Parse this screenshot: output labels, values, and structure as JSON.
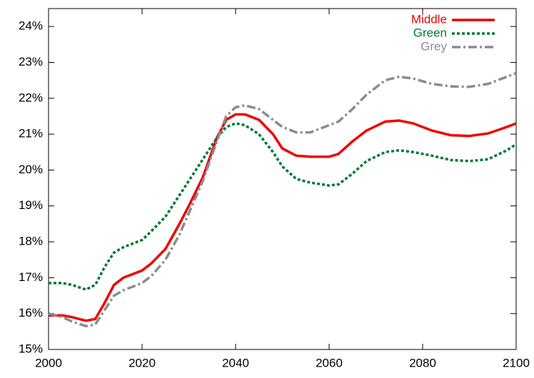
{
  "chart_data": {
    "type": "line",
    "x": [
      2000,
      2003,
      2005,
      2008,
      2010,
      2012,
      2014,
      2016,
      2018,
      2020,
      2022,
      2025,
      2028,
      2030,
      2033,
      2036,
      2038,
      2040,
      2042,
      2045,
      2048,
      2050,
      2053,
      2056,
      2060,
      2062,
      2065,
      2068,
      2072,
      2075,
      2078,
      2082,
      2086,
      2090,
      2094,
      2098,
      2100
    ],
    "series": [
      {
        "name": "Middle",
        "color": "#ee0000",
        "style": "solid",
        "values": [
          15.95,
          15.95,
          15.9,
          15.8,
          15.85,
          16.3,
          16.8,
          17.0,
          17.1,
          17.2,
          17.4,
          17.8,
          18.5,
          19.0,
          19.8,
          20.9,
          21.4,
          21.55,
          21.55,
          21.4,
          21.0,
          20.6,
          20.4,
          20.37,
          20.37,
          20.45,
          20.8,
          21.1,
          21.35,
          21.38,
          21.3,
          21.1,
          20.97,
          20.95,
          21.02,
          21.2,
          21.3
        ]
      },
      {
        "name": "Green",
        "color": "#007a33",
        "style": "dotted",
        "values": [
          16.85,
          16.85,
          16.8,
          16.67,
          16.8,
          17.3,
          17.7,
          17.85,
          17.95,
          18.05,
          18.3,
          18.7,
          19.3,
          19.7,
          20.3,
          20.9,
          21.2,
          21.3,
          21.25,
          21.0,
          20.5,
          20.1,
          19.75,
          19.65,
          19.57,
          19.6,
          19.9,
          20.25,
          20.5,
          20.55,
          20.5,
          20.4,
          20.28,
          20.25,
          20.3,
          20.55,
          20.72
        ]
      },
      {
        "name": "Grey",
        "color": "#8c8c8c",
        "style": "dashdot",
        "values": [
          16.0,
          15.9,
          15.78,
          15.65,
          15.7,
          16.1,
          16.5,
          16.65,
          16.75,
          16.85,
          17.05,
          17.5,
          18.2,
          18.8,
          19.7,
          20.8,
          21.5,
          21.75,
          21.8,
          21.7,
          21.4,
          21.2,
          21.05,
          21.05,
          21.25,
          21.35,
          21.7,
          22.1,
          22.5,
          22.6,
          22.55,
          22.4,
          22.33,
          22.32,
          22.4,
          22.6,
          22.7
        ]
      }
    ],
    "xlim": [
      2000,
      2100
    ],
    "xticks": [
      2000,
      2020,
      2040,
      2060,
      2080,
      2100
    ],
    "ylim": [
      15,
      24.5
    ],
    "yticks": [
      {
        "value": 15,
        "label": "15%"
      },
      {
        "value": 16,
        "label": "16%"
      },
      {
        "value": 17,
        "label": "17%"
      },
      {
        "value": 18,
        "label": "18%"
      },
      {
        "value": 19,
        "label": "19%"
      },
      {
        "value": 20,
        "label": "20%"
      },
      {
        "value": 21,
        "label": "21%"
      },
      {
        "value": 22,
        "label": "22%"
      },
      {
        "value": 23,
        "label": "23%"
      },
      {
        "value": 24,
        "label": "24%"
      }
    ],
    "legend": "top-right"
  }
}
